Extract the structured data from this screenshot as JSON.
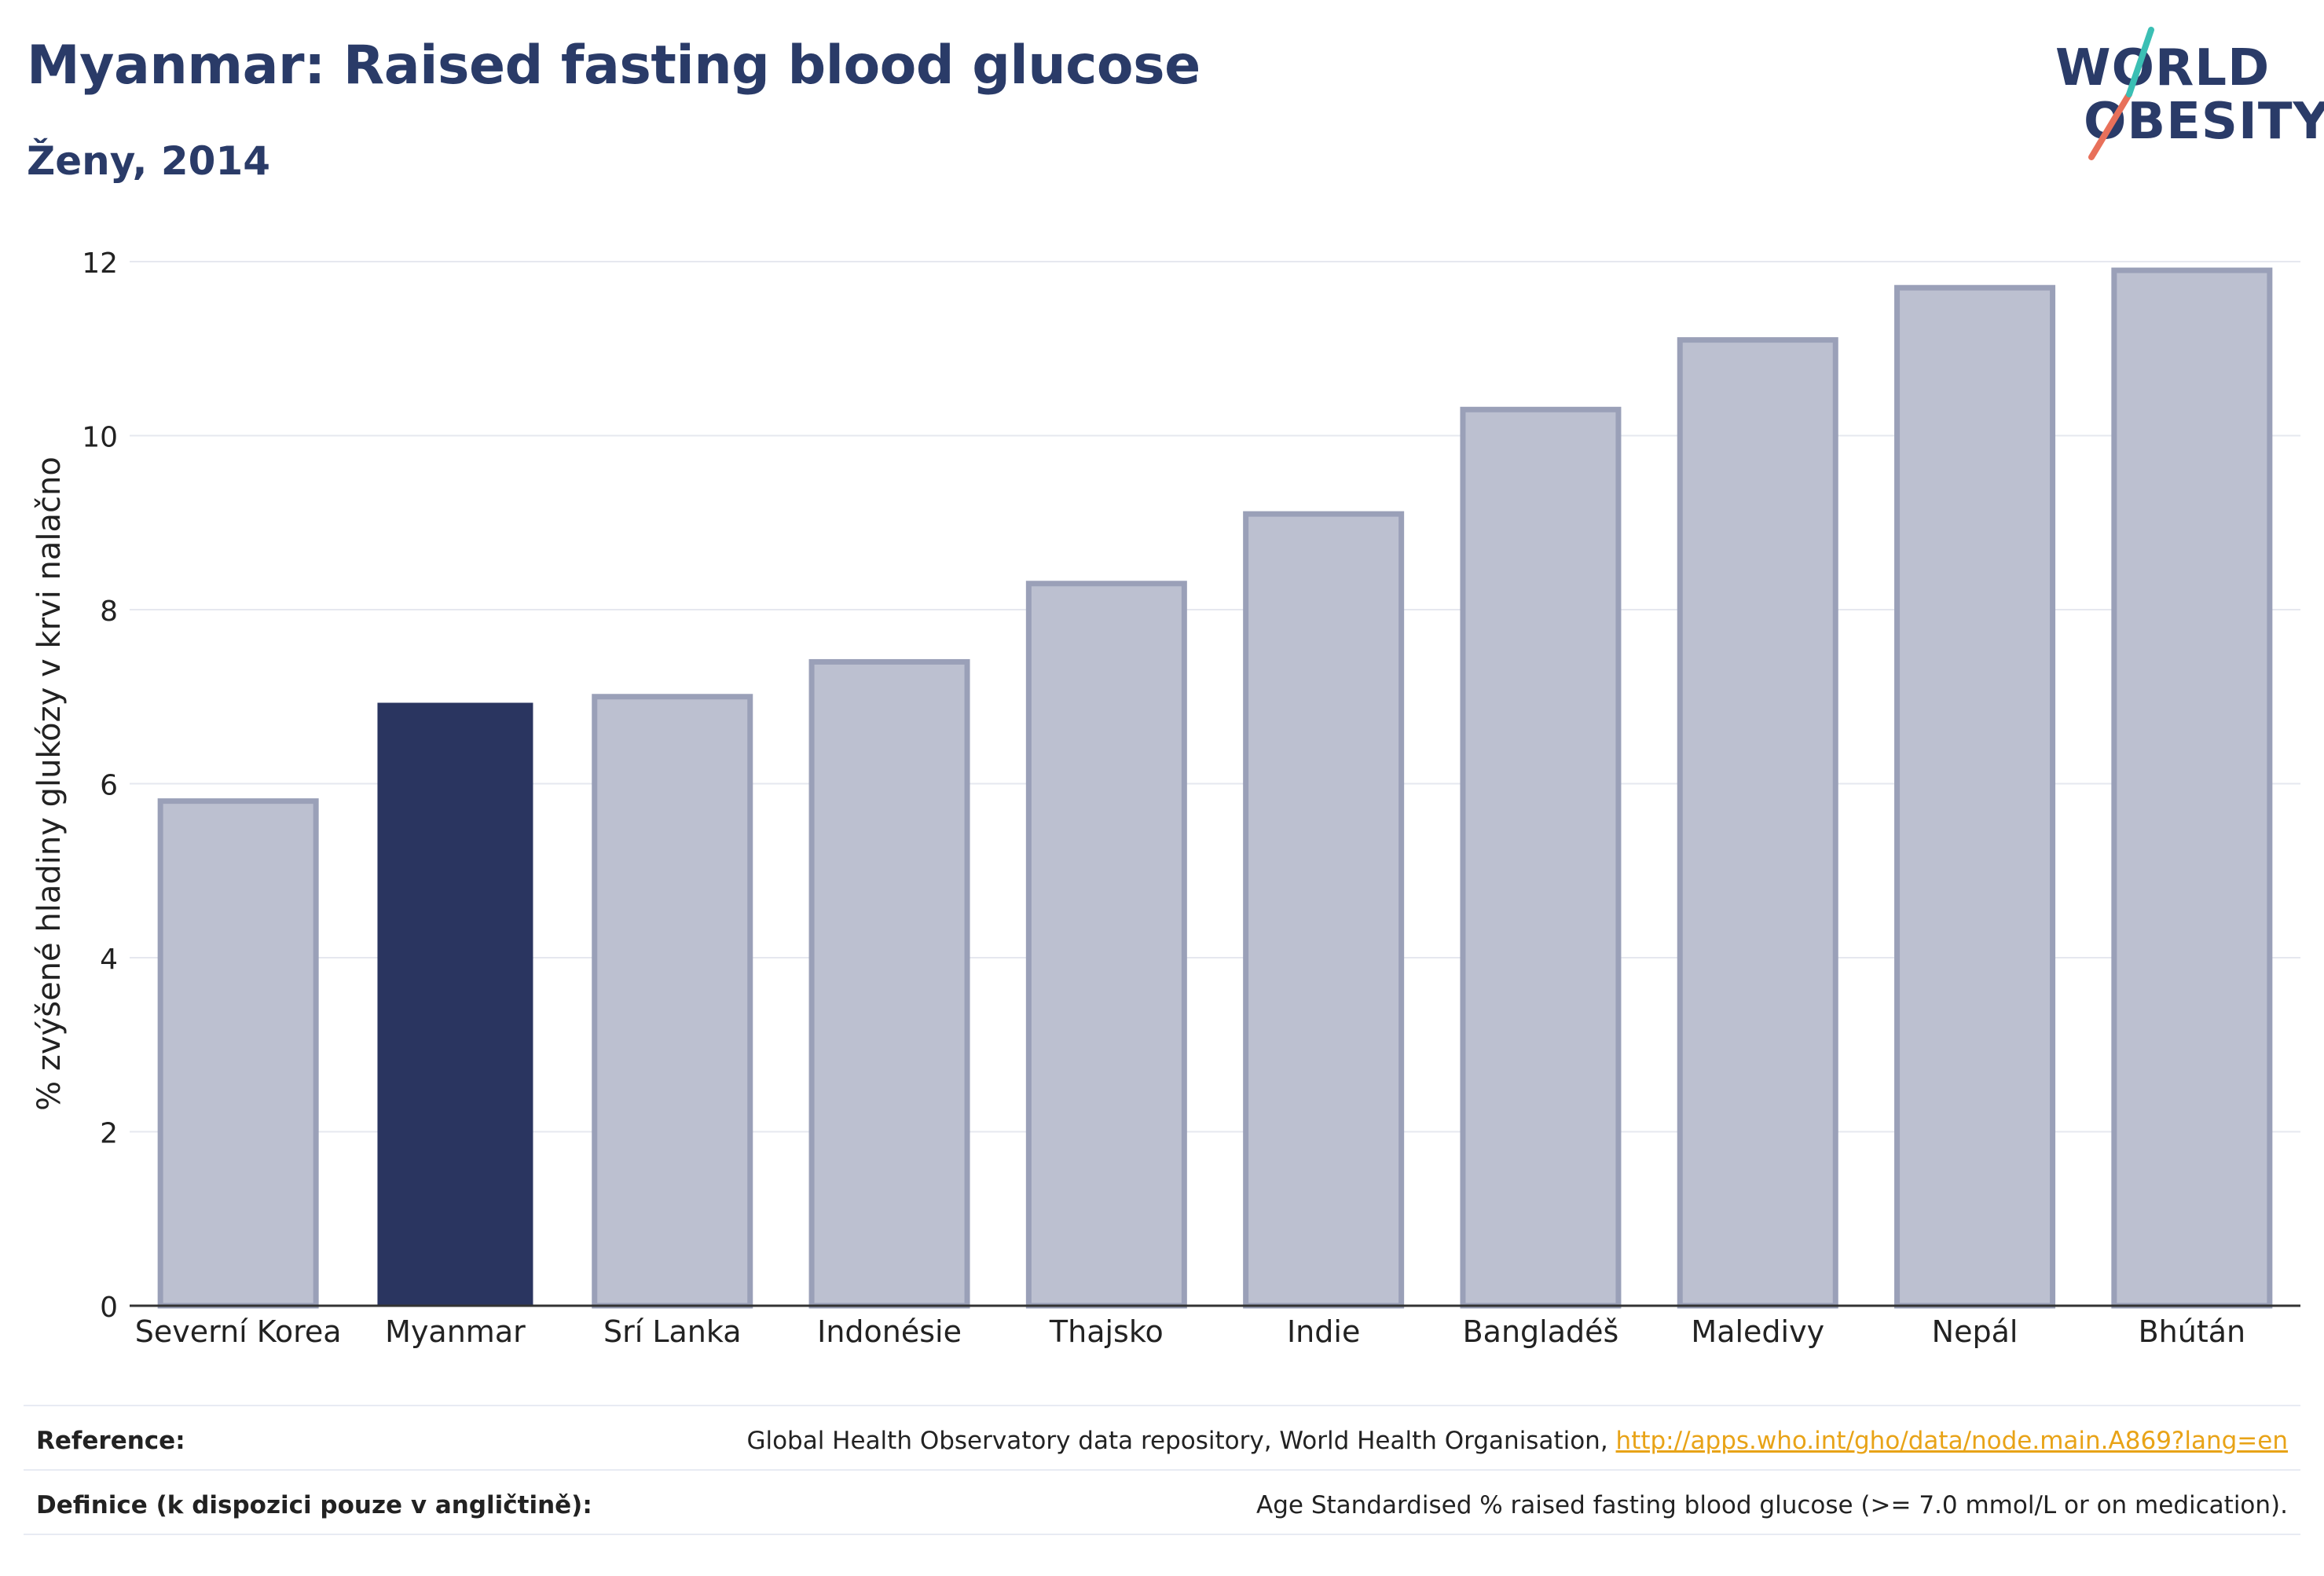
{
  "title": "Myanmar: Raised fasting blood glucose",
  "subtitle": "Ženy, 2014",
  "logo": {
    "line1": "WORLD",
    "line2": "OBESITY",
    "accent_teal": "#3bbfb4",
    "accent_coral": "#e8705a"
  },
  "colors": {
    "highlight": "#2a3560",
    "bar_fill": "#bcc0d0",
    "bar_edge": "#9aa0b8",
    "axis": "#333333",
    "grid": "#e6e8ef"
  },
  "chart_data": {
    "type": "bar",
    "categories": [
      "Severní Korea",
      "Myanmar",
      "Srí Lanka",
      "Indonésie",
      "Thajsko",
      "Indie",
      "Bangladéš",
      "Maledivy",
      "Nepál",
      "Bhútán"
    ],
    "values": [
      5.8,
      6.93,
      7.0,
      7.4,
      8.3,
      9.1,
      10.3,
      11.1,
      11.7,
      11.9
    ],
    "highlight": "Myanmar",
    "ylabel": "% zvýšené hladiny glukózy v krvi nalačno",
    "xlabel": "",
    "ylim": [
      0,
      12
    ],
    "yticks": [
      0,
      2,
      4,
      6,
      8,
      10,
      12
    ],
    "grid": true
  },
  "footer": {
    "reference_label": "Reference:",
    "reference_text": "Global Health Observatory data repository, World Health Organisation, ",
    "reference_link": "http://apps.who.int/gho/data/node.main.A869?lang=en",
    "definition_label": "Definice (k dispozici pouze v angličtině):",
    "definition_text": "Age Standardised % raised fasting blood glucose (>= 7.0 mmol/L or on medication)."
  }
}
